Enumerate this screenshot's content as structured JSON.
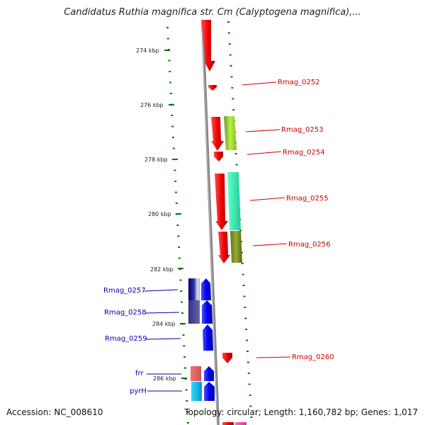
{
  "title": "Candidatus Ruthia magnifica str. Cm (Calyptogena magnifica),...",
  "footer": {
    "accession": "Accession: NC_008610",
    "stats": "Topology: circular; Length: 1,160,782 bp; Genes: 1,017"
  },
  "ticks": [
    "274 kbp",
    "276 kbp",
    "278 kbp",
    "280 kbp",
    "282 kbp",
    "284 kbp",
    "286 kbp"
  ],
  "genes_right": [
    "Rmag_0252",
    "Rmag_0253",
    "Rmag_0254",
    "Rmag_0255",
    "Rmag_0256",
    "Rmag_0260"
  ],
  "genes_left": [
    "Rmag_0257",
    "Rmag_0258",
    "Rmag_0259",
    "frr",
    "pyrH"
  ],
  "colors": {
    "forward_strand": "#ee0000",
    "reverse_strand": "#0000ee",
    "backbone": "#888888",
    "tick_marks": "#007700"
  }
}
